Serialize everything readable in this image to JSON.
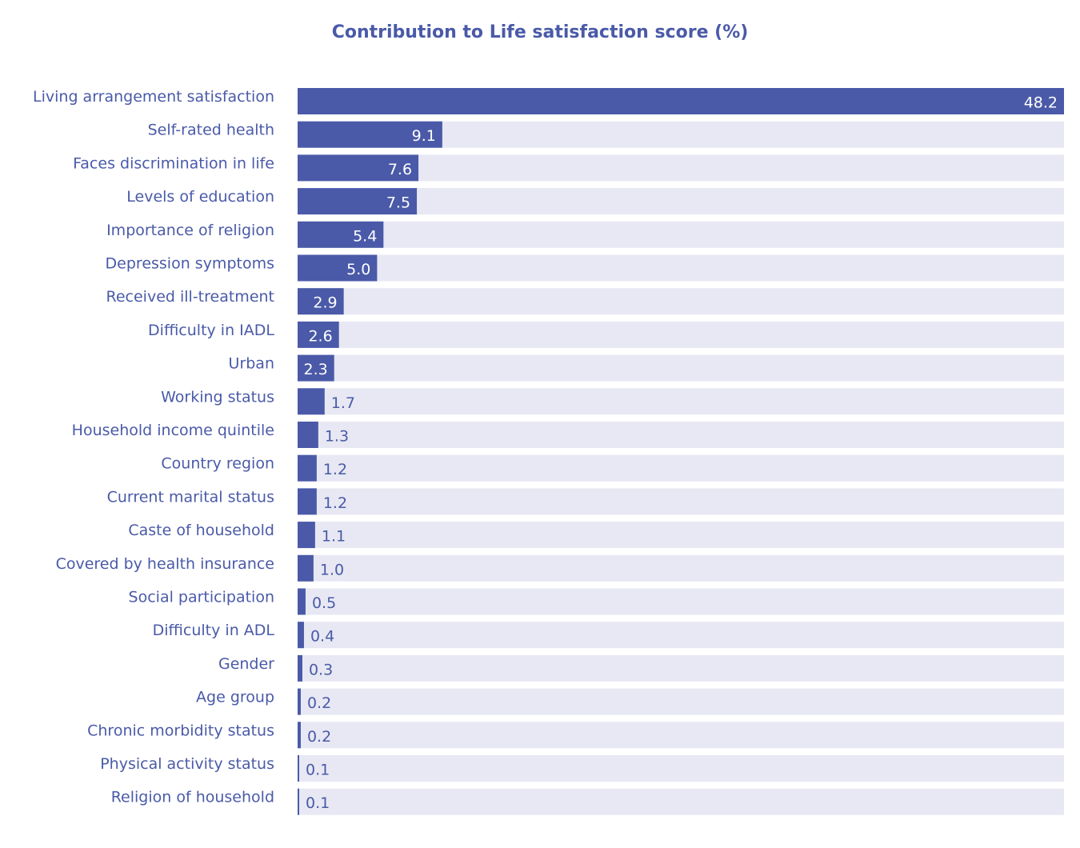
{
  "chart_data": {
    "type": "bar",
    "orientation": "horizontal",
    "title": "Contribution to Life satisfaction score (%)",
    "xlabel": "",
    "ylabel": "",
    "xlim": [
      0,
      48.2
    ],
    "grid": false,
    "legend": "none",
    "colors": {
      "title": "#4a5aa8",
      "bar": "#4a5aa8",
      "track": "#e7e8f3",
      "label": "#4a5aa8",
      "value_inside": "#ffffff",
      "value_outside": "#4a5aa8"
    },
    "categories": [
      "Living arrangement satisfaction",
      "Self-rated health",
      "Faces discrimination in life",
      "Levels of education",
      "Importance of religion",
      "Depression symptoms",
      "Received ill-treatment",
      "Difficulty in IADL",
      "Urban",
      "Working status",
      "Household income quintile",
      "Country region",
      "Current marital status",
      "Caste of household",
      "Covered by health insurance",
      "Social participation",
      "Difficulty in ADL",
      "Gender",
      "Age group",
      "Chronic morbidity status",
      "Physical activity status",
      "Religion of household"
    ],
    "values": [
      48.2,
      9.1,
      7.6,
      7.5,
      5.4,
      5.0,
      2.9,
      2.6,
      2.3,
      1.7,
      1.3,
      1.2,
      1.2,
      1.1,
      1.0,
      0.5,
      0.4,
      0.3,
      0.2,
      0.2,
      0.1,
      0.1
    ],
    "value_labels": [
      "48.2",
      "9.1",
      "7.6",
      "7.5",
      "5.4",
      "5.0",
      "2.9",
      "2.6",
      "2.3",
      "1.7",
      "1.3",
      "1.2",
      "1.2",
      "1.1",
      "1.0",
      "0.5",
      "0.4",
      "0.3",
      "0.2",
      "0.2",
      "0.1",
      "0.1"
    ]
  }
}
